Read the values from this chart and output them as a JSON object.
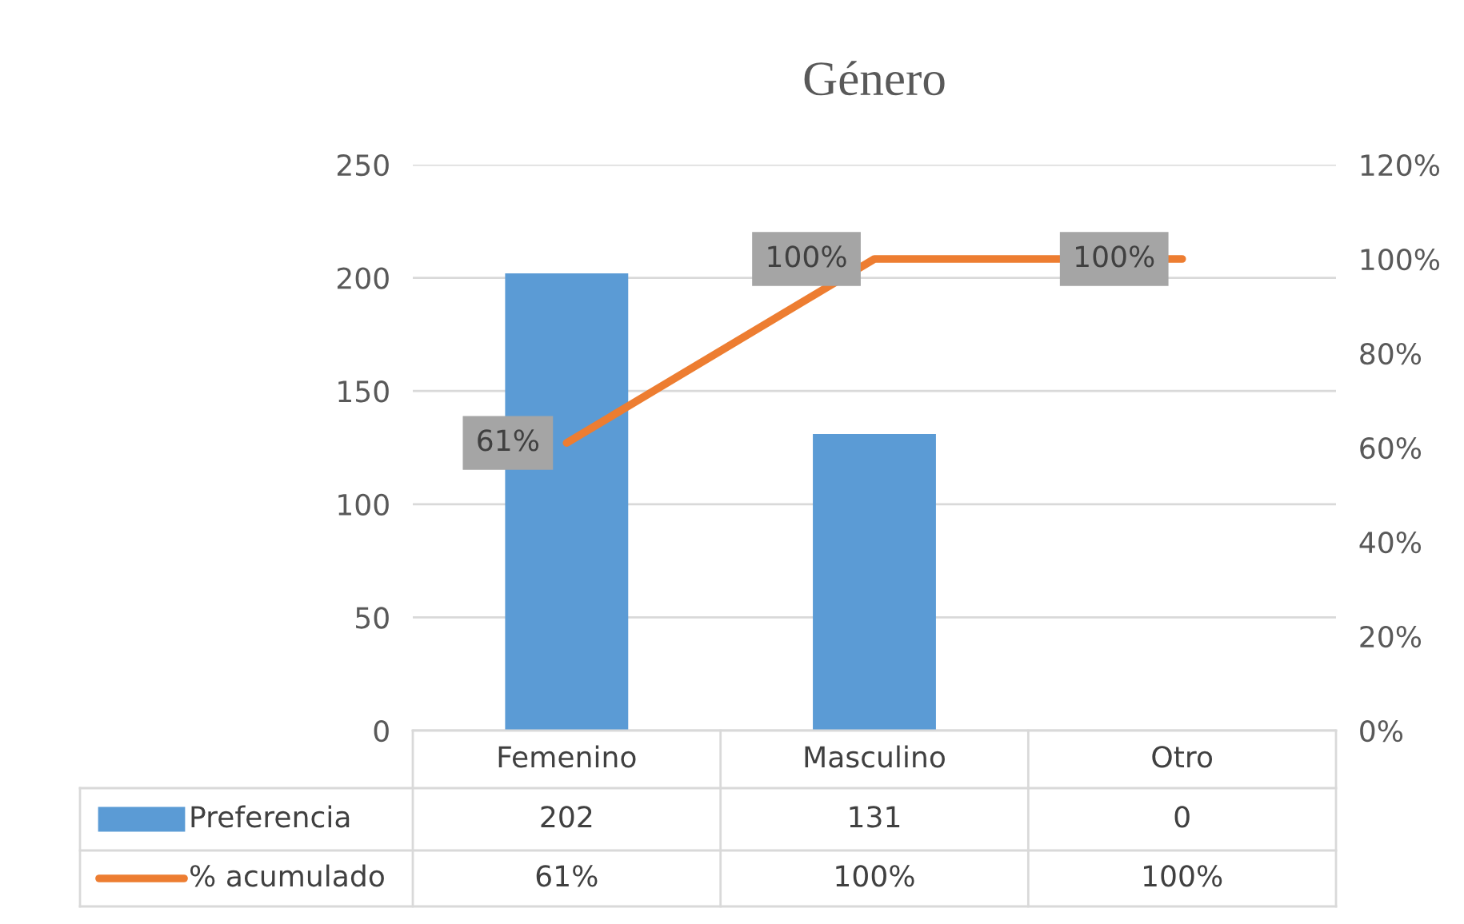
{
  "chart_data": {
    "type": "bar",
    "title": "Género",
    "categories": [
      "Femenino",
      "Masculino",
      "Otro"
    ],
    "series": [
      {
        "name": "Preferencia",
        "color": "#5b9bd5",
        "values": [
          202,
          131,
          0
        ],
        "value_labels": [
          "202",
          "131",
          "0"
        ]
      },
      {
        "name": "% acumulado",
        "type": "line",
        "axis": "y2",
        "color": "#ed7d31",
        "values": [
          61,
          100,
          100
        ],
        "value_labels": [
          "61%",
          "100%",
          "100%"
        ]
      }
    ],
    "ylim": [
      0,
      250
    ],
    "yticks": [
      0,
      50,
      100,
      150,
      200,
      250
    ],
    "y2lim": [
      0,
      120
    ],
    "y2ticks": [
      {
        "value": 0,
        "label": "0%"
      },
      {
        "value": 20,
        "label": "20%"
      },
      {
        "value": 40,
        "label": "40%"
      },
      {
        "value": 60,
        "label": "60%"
      },
      {
        "value": 80,
        "label": "80%"
      },
      {
        "value": 100,
        "label": "100%"
      },
      {
        "value": 120,
        "label": "120%"
      }
    ],
    "grid": "y",
    "legend": "bottom",
    "line_style": "solid",
    "marker": "none"
  }
}
